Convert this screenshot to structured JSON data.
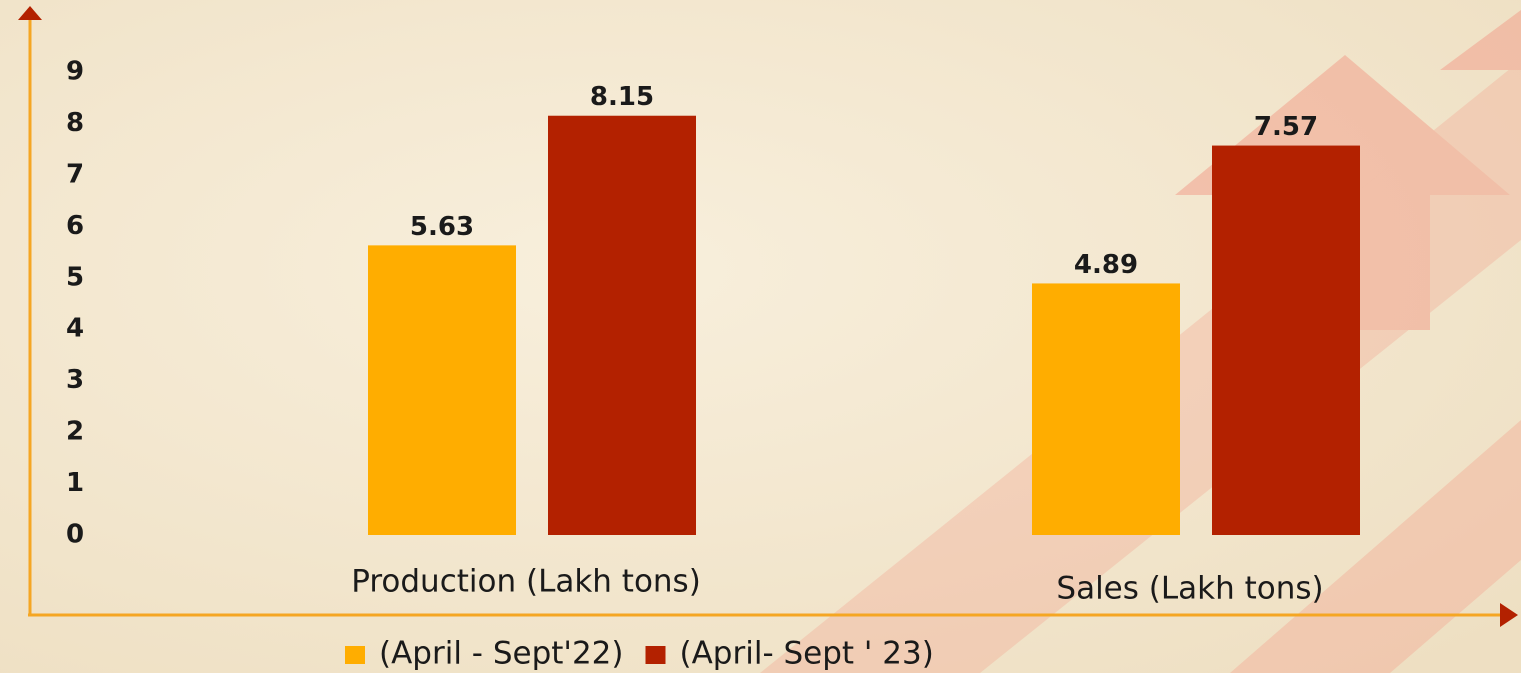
{
  "chart_data": {
    "type": "bar",
    "categories": [
      "Production (Lakh tons)",
      "Sales (Lakh tons)"
    ],
    "series": [
      {
        "name": "(April - Sept'22)",
        "color": "#ffad00",
        "values": [
          5.63,
          4.89
        ]
      },
      {
        "name": "(April- Sept ' 23)",
        "color": "#b32100",
        "values": [
          8.15,
          7.57
        ]
      }
    ],
    "ylim": [
      0,
      9
    ],
    "yticks": [
      0,
      1,
      2,
      3,
      4,
      5,
      6,
      7,
      8,
      9
    ],
    "grid": false,
    "legend": "bottom"
  }
}
